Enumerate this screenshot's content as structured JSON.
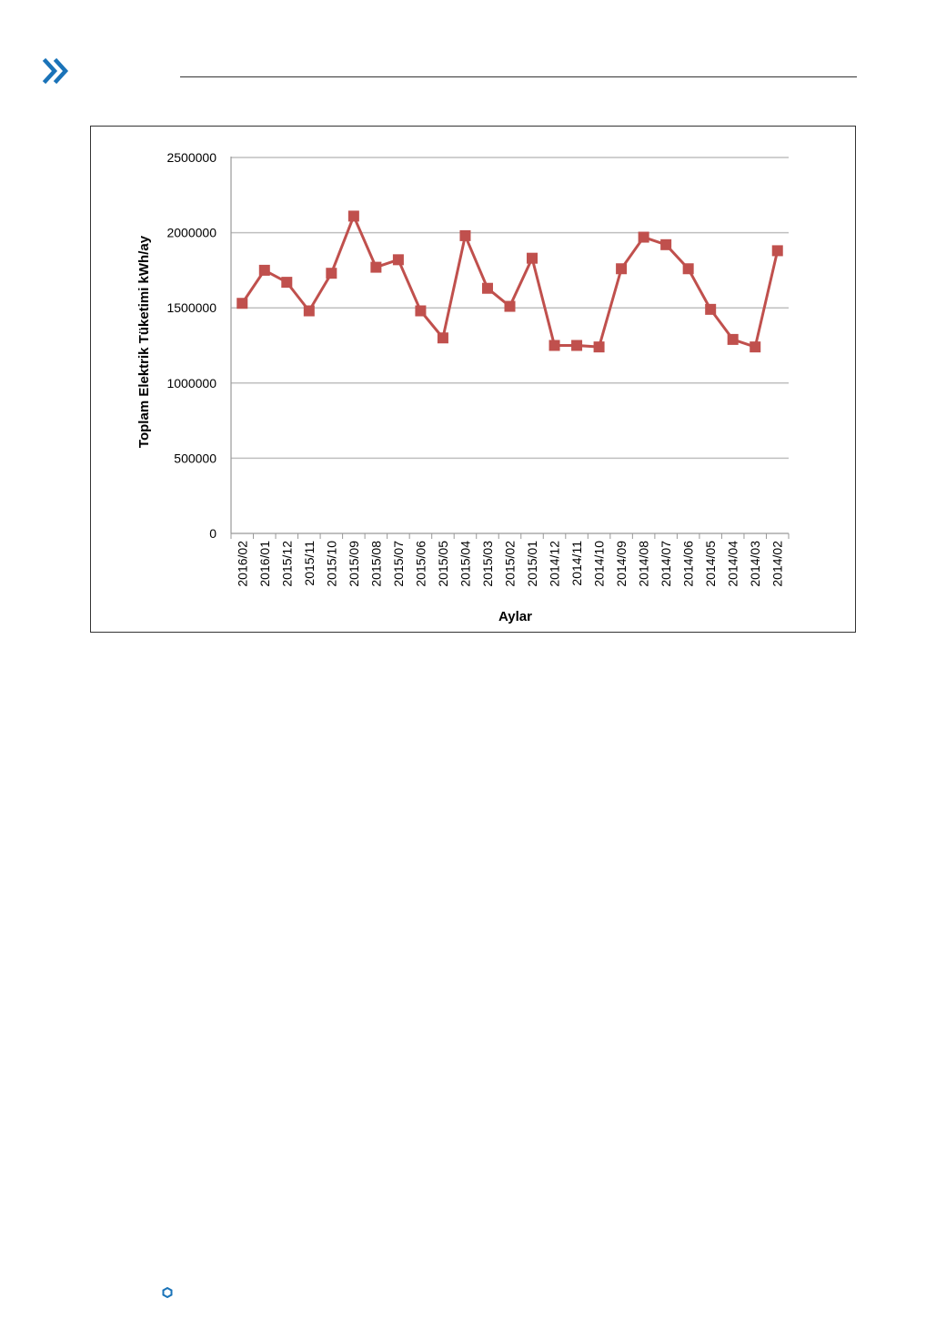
{
  "page": {
    "chevron_icon": "double-chevron-right-icon",
    "accent_color": "#1a73b8",
    "footer_icon": "hexagon-icon"
  },
  "chart_data": {
    "type": "line",
    "title": "",
    "xlabel": "Aylar",
    "ylabel": "Toplam Elektrik Tüketimi kWh/ay",
    "ylim": [
      0,
      2500000
    ],
    "yticks": [
      0,
      500000,
      1000000,
      1500000,
      2000000,
      2500000
    ],
    "grid": true,
    "legend": "none",
    "categories": [
      "2016/02",
      "2016/01",
      "2015/12",
      "2015/11",
      "2015/10",
      "2015/09",
      "2015/08",
      "2015/07",
      "2015/06",
      "2015/05",
      "2015/04",
      "2015/03",
      "2015/02",
      "2015/01",
      "2014/12",
      "2014/11",
      "2014/10",
      "2014/09",
      "2014/08",
      "2014/07",
      "2014/06",
      "2014/05",
      "2014/04",
      "2014/03",
      "2014/02"
    ],
    "series": [
      {
        "color": "#c0504d",
        "marker": "square",
        "values": [
          1530000,
          1750000,
          1670000,
          1480000,
          1730000,
          2110000,
          1770000,
          1820000,
          1480000,
          1300000,
          1980000,
          1630000,
          1510000,
          1830000,
          1250000,
          1250000,
          1240000,
          1760000,
          1970000,
          1920000,
          1760000,
          1490000,
          1290000,
          1240000,
          1880000
        ]
      }
    ]
  }
}
